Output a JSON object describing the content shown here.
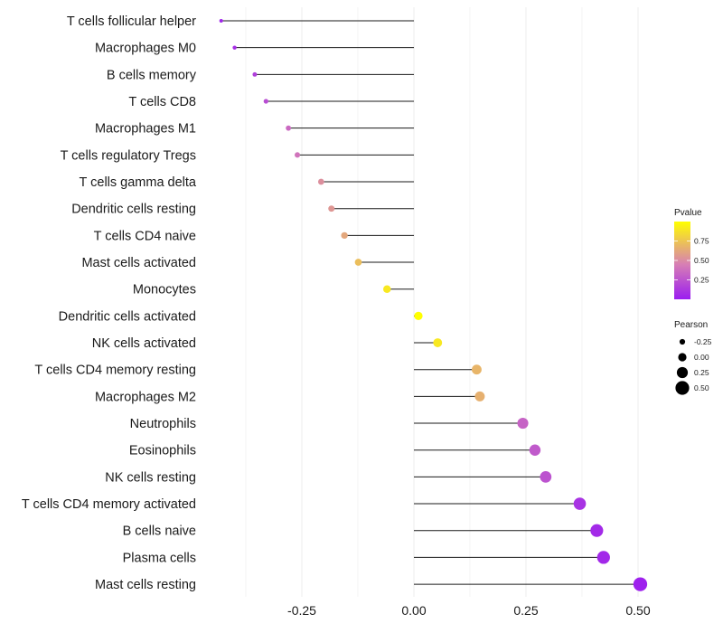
{
  "chart_data": {
    "type": "lollipop",
    "categories": [
      "T cells follicular helper",
      "Macrophages M0",
      "B cells memory",
      "T cells CD8",
      "Macrophages M1",
      "T cells regulatory  Tregs ",
      "T cells gamma delta",
      "Dendritic cells resting",
      "T cells CD4 naive",
      "Mast cells activated",
      "Monocytes",
      "Dendritic cells activated",
      "NK cells activated",
      "T cells CD4 memory resting",
      "Macrophages M2",
      "Neutrophils",
      "Eosinophils",
      "NK cells resting",
      "T cells CD4 memory activated",
      "B cells naive",
      "Plasma cells",
      "Mast cells resting"
    ],
    "pearson": [
      -0.43,
      -0.4,
      -0.355,
      -0.33,
      -0.28,
      -0.26,
      -0.207,
      -0.184,
      -0.155,
      -0.124,
      -0.06,
      0.01,
      0.053,
      0.14,
      0.147,
      0.243,
      0.27,
      0.294,
      0.37,
      0.408,
      0.423,
      0.505
    ],
    "pvalue": [
      0.04,
      0.08,
      0.16,
      0.22,
      0.35,
      0.4,
      0.52,
      0.55,
      0.62,
      0.72,
      0.9,
      1.0,
      0.9,
      0.68,
      0.66,
      0.32,
      0.28,
      0.25,
      0.1,
      0.06,
      0.05,
      0.02
    ],
    "xlim": [
      -0.5,
      0.55
    ],
    "xticks": [
      -0.25,
      0.0,
      0.25,
      0.5
    ],
    "xtick_labels": [
      "-0.25",
      "0.00",
      "0.25",
      "0.50"
    ],
    "title": "",
    "xlabel": "",
    "ylabel": "",
    "legend_pvalue": {
      "title": "Pvalue",
      "ticks": [
        0.25,
        0.5,
        0.75
      ],
      "tick_labels": [
        "0.25",
        "0.50",
        "0.75"
      ],
      "range": [
        0.0,
        1.0
      ],
      "color_low": "#9b1df0",
      "color_mid": "#d77fb4",
      "color_high": "#ffff00"
    },
    "legend_pearson": {
      "title": "Pearson",
      "values": [
        -0.25,
        0.0,
        0.25,
        0.5
      ],
      "labels": [
        "-0.25",
        "0.00",
        "0.25",
        "0.50"
      ]
    }
  }
}
